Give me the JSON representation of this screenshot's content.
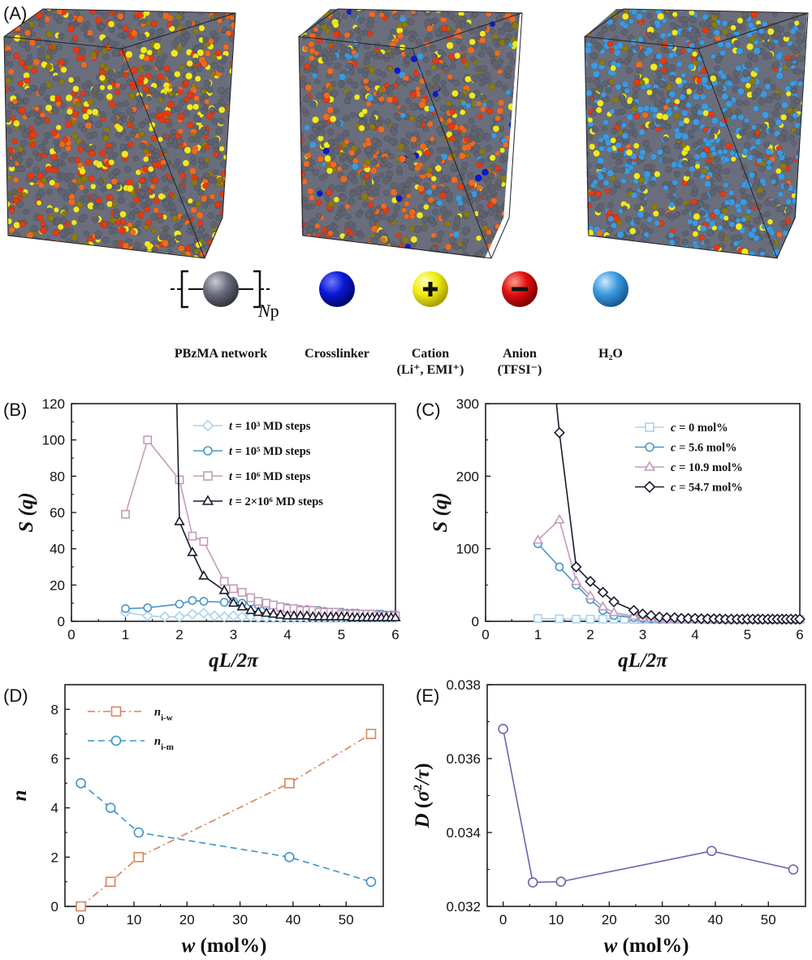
{
  "panels": {
    "A": "(A)",
    "B": "(B)",
    "C": "(C)",
    "D": "(D)",
    "E": "(E)"
  },
  "legend_species": [
    {
      "label": "PBzMA network",
      "sub": "",
      "color": "#5f6370",
      "marker": "bracket",
      "subscript": "N",
      "subscript2": "p"
    },
    {
      "label": "Crosslinker",
      "sub": "",
      "color": "#0a18d6",
      "marker": "plain"
    },
    {
      "label": "Cation",
      "sub": "(Li⁺, EMI⁺)",
      "color": "#f1ee12",
      "marker": "plus"
    },
    {
      "label": "Anion",
      "sub": "(TFSI⁻)",
      "color": "#e01010",
      "marker": "minus"
    },
    {
      "label": "H₂O",
      "sub": "",
      "color": "#3c9ae0",
      "marker": "plain"
    }
  ],
  "colors": {
    "gray": "#5f6370",
    "red": "#e53a12",
    "orange": "#ef6a20",
    "yellow": "#f2ea1a",
    "olive": "#8a7a12",
    "blue": "#3c9ae0",
    "dkblue": "#0a18d6"
  },
  "chart_data": [
    {
      "id": "B",
      "type": "line",
      "xlabel": "qL/2π",
      "ylabel": "S (q)",
      "xlim": [
        0,
        6
      ],
      "ylim": [
        0,
        120
      ],
      "xticks": [
        0,
        1,
        2,
        3,
        4,
        5,
        6
      ],
      "yticks": [
        0,
        20,
        40,
        60,
        80,
        100,
        120
      ],
      "series": [
        {
          "name": "t = 10³ MD steps",
          "color": "#a9d3ee",
          "marker": "diamond",
          "x": [
            1,
            1.41,
            1.73,
            2,
            2.24,
            2.45,
            2.65,
            2.83,
            3,
            3.16,
            3.32,
            3.46,
            3.61,
            3.74,
            3.87,
            4,
            4.12,
            4.24,
            4.36,
            4.47,
            4.58,
            4.69,
            4.8,
            4.9,
            5,
            5.1,
            5.2,
            5.29,
            5.39,
            5.48,
            5.57,
            5.66,
            5.74,
            5.83,
            5.92,
            6
          ],
          "y": [
            5,
            3,
            2.5,
            2.5,
            4,
            4.5,
            3,
            2.5,
            3,
            2.5,
            2.5,
            2,
            2,
            2,
            2,
            2,
            2,
            2,
            2,
            2,
            2,
            2,
            2,
            2,
            2,
            2,
            2,
            2,
            2,
            2,
            2,
            2,
            2,
            2,
            2,
            2
          ]
        },
        {
          "name": "t = 10⁵ MD steps",
          "color": "#4a95c9",
          "marker": "circle",
          "x": [
            1,
            1.41,
            2,
            2.24,
            2.45,
            2.83,
            3,
            3.16,
            3.32,
            3.46,
            3.61,
            3.74,
            3.87,
            4,
            4.12,
            4.24,
            4.36,
            4.47,
            4.58,
            4.69,
            4.8,
            4.9,
            5,
            5.1,
            5.2,
            5.29,
            5.39,
            5.48,
            5.57,
            5.66,
            5.74,
            5.83,
            5.92,
            6
          ],
          "y": [
            7,
            7.5,
            9.5,
            11.5,
            11,
            10.5,
            11,
            10,
            10.5,
            9,
            8.5,
            9,
            7.5,
            7.5,
            7,
            6.5,
            6.5,
            6,
            6,
            5.5,
            5,
            5,
            5,
            4.5,
            4.5,
            4.5,
            4,
            4,
            4,
            4,
            4,
            3.5,
            3.5,
            3.5
          ]
        },
        {
          "name": "t = 10⁶ MD steps",
          "color": "#c49bb8",
          "marker": "square",
          "x": [
            1,
            1.41,
            2,
            2.24,
            2.45,
            2.83,
            3,
            3.16,
            3.32,
            3.46,
            3.61,
            3.74,
            3.87,
            4,
            4.12,
            4.24,
            4.36,
            4.47,
            4.58,
            4.69,
            4.8,
            4.9,
            5,
            5.1,
            5.2,
            5.29,
            5.39,
            5.48,
            5.57,
            5.66,
            5.74,
            5.83,
            5.92,
            6
          ],
          "y": [
            59,
            100,
            78,
            47,
            44,
            22,
            18,
            16,
            13,
            11,
            10,
            9,
            8,
            7,
            7,
            6,
            6,
            6,
            5,
            5,
            5,
            5,
            4,
            4,
            4,
            4,
            4,
            4,
            4,
            3,
            3,
            3,
            3,
            3
          ]
        },
        {
          "name": "t = 2×10⁶ MD steps",
          "color": "#1a1a2e",
          "marker": "triangle",
          "x": [
            2,
            2.24,
            2.45,
            2.83,
            3,
            3.16,
            3.32,
            3.46,
            3.61,
            3.74,
            3.87,
            4,
            4.12,
            4.24,
            4.36,
            4.47,
            4.58,
            4.69,
            4.8,
            4.9,
            5,
            5.1,
            5.2,
            5.29,
            5.39,
            5.48,
            5.57,
            5.66,
            5.74,
            5.83,
            5.92,
            6
          ],
          "y": [
            55,
            38,
            25,
            17,
            10,
            8,
            6,
            5,
            4.5,
            4,
            3.5,
            3,
            3,
            3,
            3,
            2.5,
            2.5,
            2.5,
            2.5,
            2.5,
            2.5,
            2.5,
            2,
            2,
            2,
            2,
            2,
            2,
            2,
            2,
            2,
            2
          ],
          "lead_from_top_x": 1.95
        }
      ]
    },
    {
      "id": "C",
      "type": "line",
      "xlabel": "qL/2π",
      "ylabel": "S (q)",
      "xlim": [
        0,
        6
      ],
      "ylim": [
        0,
        300
      ],
      "xticks": [
        0,
        1,
        2,
        3,
        4,
        5,
        6
      ],
      "yticks": [
        0,
        100,
        200,
        300
      ],
      "series": [
        {
          "name": "c = 0 mol%",
          "color": "#a9d3ee",
          "marker": "square",
          "x": [
            1,
            1.41,
            1.73,
            2,
            2.24,
            2.45,
            2.65,
            2.83,
            3,
            3.16,
            3.32,
            3.46,
            3.61,
            3.74,
            3.87,
            4,
            4.12,
            4.24,
            4.36,
            4.47,
            4.58,
            4.69,
            4.8,
            4.9,
            5,
            5.1,
            5.2,
            5.29,
            5.39,
            5.48,
            5.57,
            5.66,
            5.74,
            5.83,
            5.92,
            6
          ],
          "y": [
            4,
            3.5,
            3,
            3,
            3,
            3,
            3,
            2.5,
            2.5,
            2.5,
            2.5,
            2.5,
            2.5,
            2.5,
            2.5,
            2.5,
            2.5,
            2.5,
            2.5,
            2.5,
            2.5,
            2.5,
            2.5,
            2.5,
            2.5,
            2.5,
            2.5,
            2.5,
            2.5,
            2.5,
            2.5,
            2.5,
            2.5,
            2.5,
            2.5,
            2.5
          ]
        },
        {
          "name": "c = 5.6 mol%",
          "color": "#4a95c9",
          "marker": "circle",
          "x": [
            1,
            1.41,
            1.73,
            2,
            2.24,
            2.45,
            2.83,
            3,
            3.16,
            3.32,
            3.46,
            3.61,
            3.74,
            3.87,
            4,
            4.12,
            4.24,
            4.36,
            4.47,
            4.58,
            4.69,
            4.8,
            4.9,
            5,
            5.1,
            5.2,
            5.29,
            5.39,
            5.48,
            5.57,
            5.66,
            5.74,
            5.83,
            5.92,
            6
          ],
          "y": [
            107,
            75,
            50,
            30,
            15,
            8,
            5,
            4,
            3.5,
            3,
            3,
            3,
            3,
            3,
            3,
            3,
            2.5,
            2.5,
            2.5,
            2.5,
            2.5,
            2.5,
            2.5,
            2.5,
            2.5,
            2.5,
            2.5,
            2.5,
            2.5,
            2.5,
            2.5,
            2.5,
            2.5,
            2.5,
            2.5
          ]
        },
        {
          "name": "c = 10.9 mol%",
          "color": "#c49bb8",
          "marker": "triangle",
          "x": [
            1,
            1.41,
            1.73,
            2,
            2.24,
            2.45,
            2.83,
            3,
            3.16,
            3.32,
            3.46,
            3.61,
            3.74,
            3.87,
            4,
            4.12,
            4.24,
            4.36,
            4.47,
            4.58,
            4.69,
            4.8,
            4.9,
            5,
            5.1,
            5.2,
            5.29,
            5.39,
            5.48,
            5.57,
            5.66,
            5.74,
            5.83,
            5.92,
            6
          ],
          "y": [
            112,
            140,
            55,
            35,
            20,
            12,
            7,
            5,
            4,
            3.5,
            3,
            3,
            3,
            3,
            3,
            3,
            3,
            3,
            3,
            3,
            3,
            3,
            3,
            3,
            3,
            3,
            3,
            3,
            3,
            3,
            3,
            3,
            3,
            3,
            3
          ]
        },
        {
          "name": "c = 54.7 mol%",
          "color": "#1a1a2e",
          "marker": "diamond",
          "x": [
            1.41,
            1.73,
            2,
            2.24,
            2.45,
            2.83,
            3,
            3.16,
            3.32,
            3.46,
            3.61,
            3.74,
            3.87,
            4,
            4.12,
            4.24,
            4.36,
            4.47,
            4.58,
            4.69,
            4.8,
            4.9,
            5,
            5.1,
            5.2,
            5.29,
            5.39,
            5.48,
            5.57,
            5.66,
            5.74,
            5.83,
            5.92,
            6
          ],
          "y": [
            260,
            75,
            55,
            40,
            27,
            15,
            10,
            8,
            6,
            5,
            5,
            4,
            4,
            4,
            3.5,
            3.5,
            3.5,
            3.5,
            3,
            3,
            3,
            3,
            3,
            3,
            3,
            3,
            3,
            3,
            3,
            3,
            3,
            3,
            3,
            3
          ],
          "lead_from_top_x": 1.35
        }
      ]
    },
    {
      "id": "D",
      "type": "line",
      "xlabel": "w (mol%)",
      "ylabel": "n",
      "xlim": [
        -3,
        57
      ],
      "ylim": [
        0,
        9
      ],
      "xticks": [
        0,
        10,
        20,
        30,
        40,
        50
      ],
      "yticks": [
        0,
        2,
        4,
        6,
        8
      ],
      "series": [
        {
          "name": "n",
          "sub": "i-w",
          "color": "#d9825e",
          "marker": "square",
          "dash": "9 4 2 4",
          "x": [
            0,
            5.6,
            10.9,
            39.3,
            54.7
          ],
          "y": [
            0,
            1,
            2,
            5,
            7
          ]
        },
        {
          "name": "n",
          "sub": "i-m",
          "color": "#3f93c8",
          "marker": "circle",
          "dash": "8 5",
          "x": [
            0,
            5.6,
            10.9,
            39.3,
            54.7
          ],
          "y": [
            5,
            4,
            3,
            2,
            1
          ]
        }
      ]
    },
    {
      "id": "E",
      "type": "line",
      "xlabel": "w (mol%)",
      "ylabel": "D (σ²/τ)",
      "xlim": [
        -3,
        57
      ],
      "ylim": [
        0.032,
        0.038
      ],
      "xticks": [
        0,
        10,
        20,
        30,
        40,
        50
      ],
      "yticks": [
        0.032,
        0.034,
        0.036,
        0.038
      ],
      "series": [
        {
          "name": "",
          "color": "#6a64ad",
          "marker": "circle",
          "x": [
            0,
            5.6,
            10.9,
            39.3,
            54.7
          ],
          "y": [
            0.0368,
            0.03265,
            0.03267,
            0.0335,
            0.033
          ]
        }
      ]
    }
  ]
}
